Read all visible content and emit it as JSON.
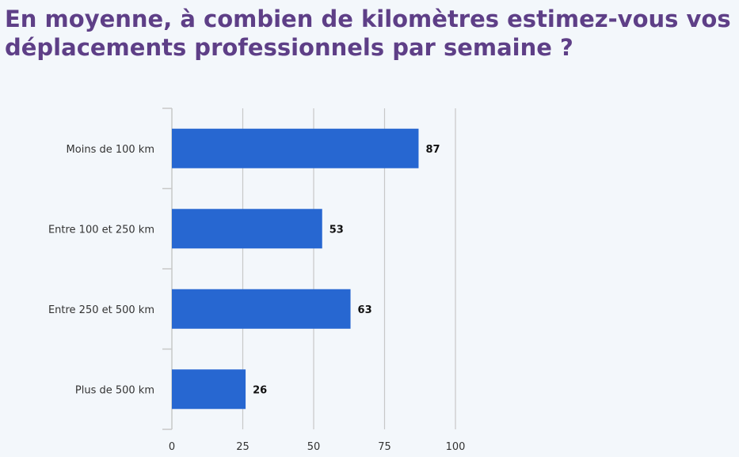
{
  "title": "En moyenne, à combien de kilomètres estimez-vous vos déplacements professionnels par semaine ?",
  "chart_data": {
    "type": "bar",
    "orientation": "horizontal",
    "categories": [
      "Moins de 100 km",
      "Entre 100 et 250 km",
      "Entre 250 et 500 km",
      "Plus de 500 km"
    ],
    "values": [
      87,
      53,
      63,
      26
    ],
    "xlim": [
      0,
      100
    ],
    "xticks": [
      0,
      25,
      50,
      75,
      100
    ],
    "grid": true,
    "data_labels": true,
    "colors": {
      "bar": "#2767d1",
      "grid": "#c8c8c8",
      "axis": "#c8c8c8",
      "label": "#333333",
      "value": "#111111",
      "title": "#5e3f87"
    }
  }
}
